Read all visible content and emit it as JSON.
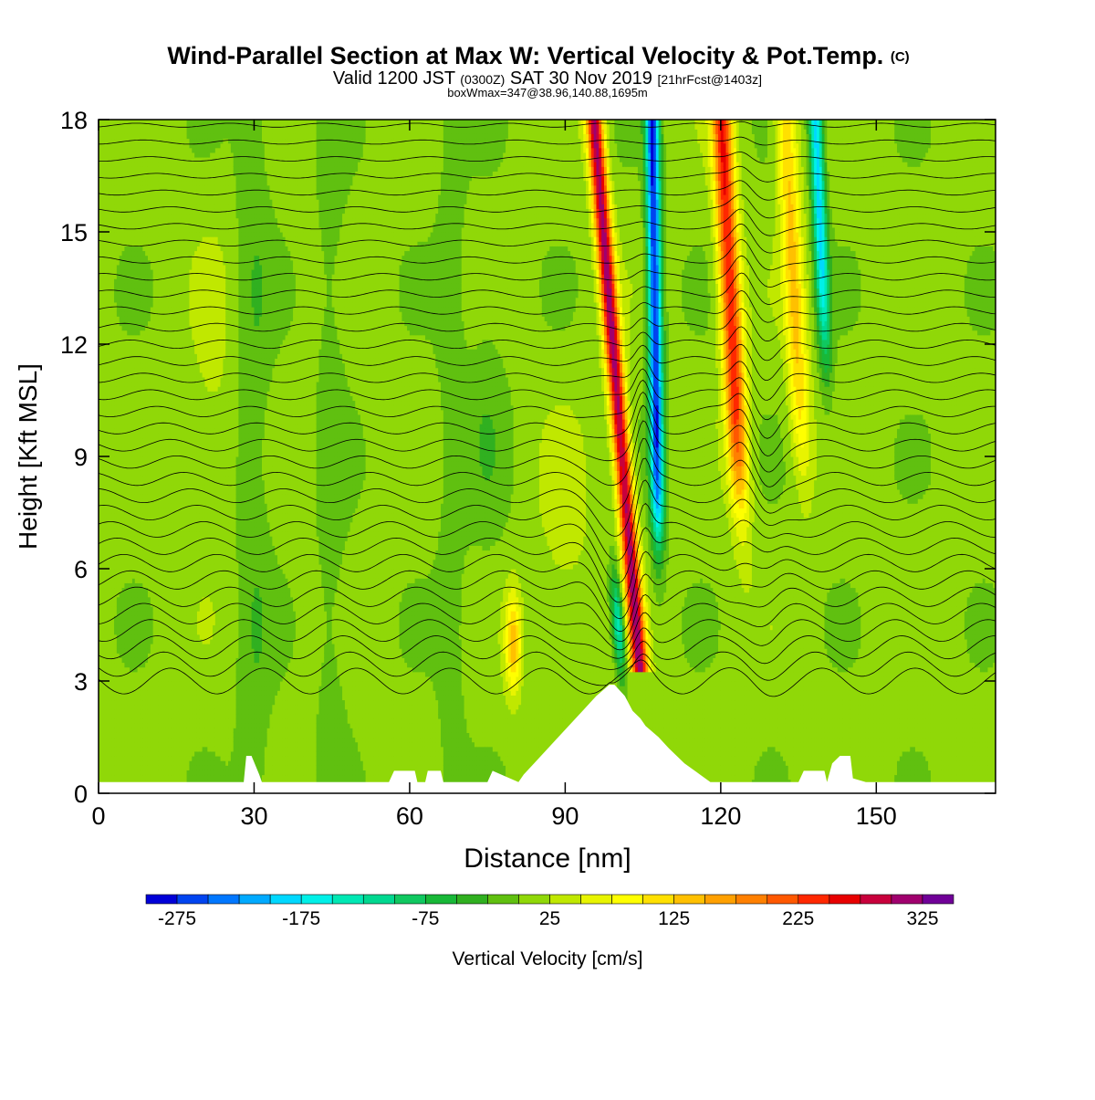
{
  "header": {
    "title_main": "Wind-Parallel Section at Max W: Vertical Velocity & Pot.Temp.",
    "title_mark": "(C)",
    "subtitle_1": "Valid 1200 JST",
    "subtitle_2": "(0300Z)",
    "subtitle_3": "SAT 30 Nov 2019",
    "subtitle_4": "[21hrFcst@1403z]",
    "subtitle_line3": "boxWmax=347@38.96,140.88,1695m"
  },
  "chart_data": {
    "type": "heatmap",
    "xlabel": "Distance [nm]",
    "ylabel": "Height [Kft MSL]",
    "xlim": [
      0,
      173
    ],
    "ylim": [
      0,
      18
    ],
    "x_ticks": [
      0,
      30,
      60,
      90,
      120,
      150
    ],
    "y_ticks": [
      0,
      3,
      6,
      9,
      12,
      15,
      18
    ],
    "colorbar": {
      "label": "Vertical Velocity [cm/s]",
      "ticks": [
        -275,
        -175,
        -75,
        25,
        125,
        225,
        325
      ],
      "min": -300,
      "max": 350,
      "bins": 26,
      "colors": [
        "#0000d8",
        "#0044f0",
        "#0077ff",
        "#00aaff",
        "#00d8ff",
        "#00f0e8",
        "#00e8b4",
        "#00d890",
        "#10c860",
        "#18b838",
        "#30b020",
        "#60c010",
        "#90d808",
        "#c0e800",
        "#e8f400",
        "#ffff00",
        "#ffe000",
        "#ffc000",
        "#ffa000",
        "#ff8000",
        "#ff5800",
        "#ff2800",
        "#e80000",
        "#c8003c",
        "#a0006e",
        "#700098"
      ]
    },
    "updraft_columns": [
      {
        "x": 104,
        "z_bottom": 3.5,
        "z_top": 18,
        "w_max": 300
      },
      {
        "x": 123,
        "z_bottom": 6,
        "z_top": 18,
        "w_max": 240
      },
      {
        "x": 135,
        "z_bottom": 8,
        "z_top": 18,
        "w_max": 120
      },
      {
        "x": 80,
        "z_bottom": 3,
        "z_top": 5.5,
        "w_max": 150
      }
    ],
    "downdraft_columns": [
      {
        "x": 107.5,
        "z_bottom": 6,
        "z_top": 18,
        "w_min": -275
      },
      {
        "x": 139,
        "z_bottom": 10,
        "z_top": 18,
        "w_min": -200
      }
    ],
    "terrain": {
      "x": [
        0,
        28,
        28.5,
        29.5,
        31,
        31.5,
        56,
        57,
        61,
        61.5,
        63,
        63.5,
        66,
        66.5,
        75,
        76,
        81,
        82,
        84,
        88,
        92,
        96,
        98.5,
        99.5,
        101.5,
        103,
        104.5,
        105.5,
        108,
        110,
        113,
        116,
        118,
        120,
        127,
        130,
        135,
        136,
        140,
        140.5,
        141.5,
        143,
        145,
        145.5,
        148,
        149,
        173
      ],
      "height": [
        0.3,
        0.3,
        1.0,
        1.0,
        0.5,
        0.3,
        0.3,
        0.6,
        0.6,
        0.3,
        0.3,
        0.6,
        0.6,
        0.3,
        0.3,
        0.6,
        0.3,
        0.5,
        0.8,
        1.4,
        2.0,
        2.6,
        2.9,
        2.9,
        2.6,
        2.2,
        2.0,
        1.8,
        1.5,
        1.2,
        0.8,
        0.5,
        0.3,
        0.3,
        0.3,
        0.3,
        0.3,
        0.6,
        0.6,
        0.3,
        0.8,
        1.0,
        1.0,
        0.4,
        0.3,
        0.3,
        0.3
      ]
    }
  }
}
